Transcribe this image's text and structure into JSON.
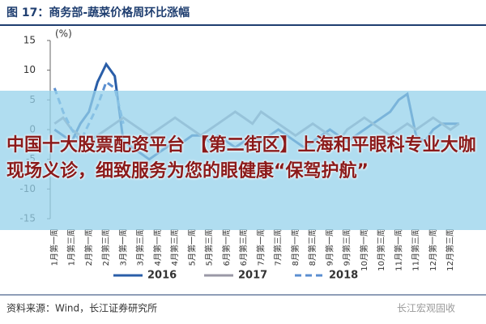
{
  "chart_data": {
    "type": "line",
    "title": "图 17：商务部-蔬菜价格周环比涨幅",
    "y_label": "(%)",
    "categories": [
      "1月第一周",
      null,
      "1月第三周",
      null,
      "2月第一周",
      null,
      "2月第三周",
      null,
      "3月第一周",
      null,
      "3月第三周",
      null,
      "4月第一周",
      null,
      "4月第三周",
      null,
      "5月第一周",
      null,
      "5月第三周",
      null,
      "6月第一周",
      null,
      "6月第三周",
      null,
      "7月第一周",
      null,
      "7月第三周",
      null,
      "8月第一周",
      null,
      "8月第三周",
      null,
      "9月第一周",
      null,
      "9月第三周",
      null,
      "10月第一周",
      null,
      "10月第三周",
      null,
      "11月第一周",
      null,
      "11月第三周",
      null,
      "12月第一周",
      null,
      "12月第三周",
      null
    ],
    "series": [
      {
        "name": "2016",
        "color": "#2a5ea8",
        "dashed": false,
        "values": [
          0,
          -1,
          -2,
          1,
          3,
          8,
          11,
          9,
          -2,
          -3,
          -4,
          -5,
          -4,
          -3,
          -2,
          -2,
          -1,
          -1,
          -2,
          -1,
          -2,
          -3,
          -2,
          -1,
          -2,
          -1,
          0,
          -1,
          -2,
          -3,
          -2,
          -1,
          0,
          -1,
          -2,
          -1,
          0,
          1,
          2,
          3,
          5,
          6,
          -1,
          -2,
          0,
          1,
          1,
          1
        ]
      },
      {
        "name": "2017",
        "color": "#9a98a6",
        "dashed": false,
        "values": [
          1,
          2,
          0,
          -1,
          -2,
          -1,
          0,
          1,
          2,
          1,
          0,
          -1,
          0,
          1,
          2,
          1,
          0,
          -1,
          0,
          1,
          2,
          3,
          2,
          1,
          3,
          2,
          1,
          0,
          -1,
          0,
          1,
          0,
          -1,
          -2,
          0,
          1,
          2,
          1,
          0,
          -1,
          0,
          1,
          0,
          1,
          2,
          1,
          0,
          1
        ]
      },
      {
        "name": "2018",
        "color": "#5b8fd0",
        "dashed": true,
        "values": [
          7,
          3,
          0,
          -2,
          1,
          4,
          8,
          7,
          1,
          null,
          null,
          null,
          null,
          null,
          null,
          null,
          null,
          null,
          null,
          null,
          null,
          null,
          null,
          null,
          null,
          null,
          null,
          null,
          null,
          null,
          null,
          null,
          null,
          null,
          null,
          null,
          null,
          null,
          null,
          null,
          null,
          null,
          null,
          null,
          null,
          null,
          null,
          null
        ]
      }
    ],
    "ylim": [
      -15,
      15
    ],
    "yticks": [
      -15,
      -10,
      -5,
      0,
      5,
      10,
      15
    ],
    "grid": false,
    "source": "资料来源：Wind，长江证券研究所",
    "watermark": "长江宏观固收"
  },
  "overlay_text": "中国十大股票配资平台 【第二街区】上海和平眼科专业大咖现场义诊，细致服务为您的眼健康“保驾护航”"
}
